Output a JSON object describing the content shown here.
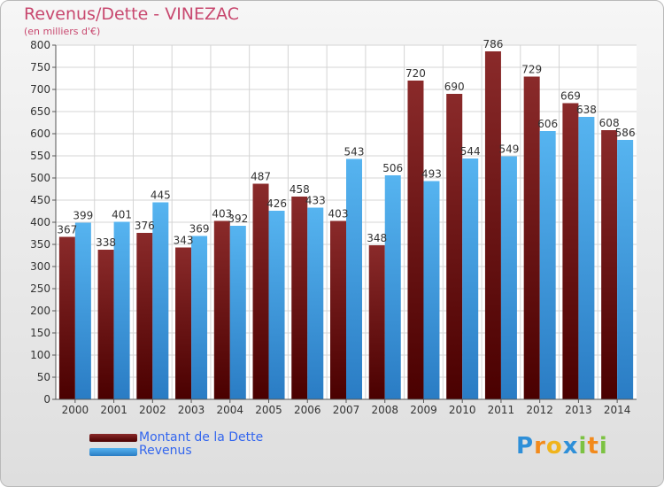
{
  "chart_data": {
    "type": "bar",
    "title": "Revenus/Dette - VINEZAC",
    "subtitle": "(en milliers d'€)",
    "categories": [
      "2000",
      "2001",
      "2002",
      "2003",
      "2004",
      "2005",
      "2006",
      "2007",
      "2008",
      "2009",
      "2010",
      "2011",
      "2012",
      "2013",
      "2014"
    ],
    "series": [
      {
        "name": "Montant de la Dette",
        "color": "#6e1515",
        "values": [
          367,
          338,
          376,
          343,
          403,
          487,
          458,
          403,
          348,
          720,
          690,
          786,
          729,
          669,
          608
        ]
      },
      {
        "name": "Revenus",
        "color": "#3a9ee6",
        "values": [
          399,
          401,
          445,
          369,
          392,
          426,
          433,
          543,
          506,
          493,
          544,
          549,
          606,
          638,
          586
        ]
      }
    ],
    "ylim": [
      0,
      800
    ],
    "yticks": [
      0,
      50,
      100,
      150,
      200,
      250,
      300,
      350,
      400,
      450,
      500,
      550,
      600,
      650,
      700,
      750,
      800
    ],
    "grid": true,
    "legend_position": "bottom-left"
  },
  "logo": {
    "text": "Proxiti",
    "letters": [
      {
        "ch": "P",
        "color": "#2e8fd8"
      },
      {
        "ch": "r",
        "color": "#f28a1c"
      },
      {
        "ch": "o",
        "color": "#f0b41c"
      },
      {
        "ch": "x",
        "color": "#2e8fd8"
      },
      {
        "ch": "i",
        "color": "#7cc242"
      },
      {
        "ch": "t",
        "color": "#f28a1c"
      },
      {
        "ch": "i",
        "color": "#7cc242"
      }
    ]
  }
}
